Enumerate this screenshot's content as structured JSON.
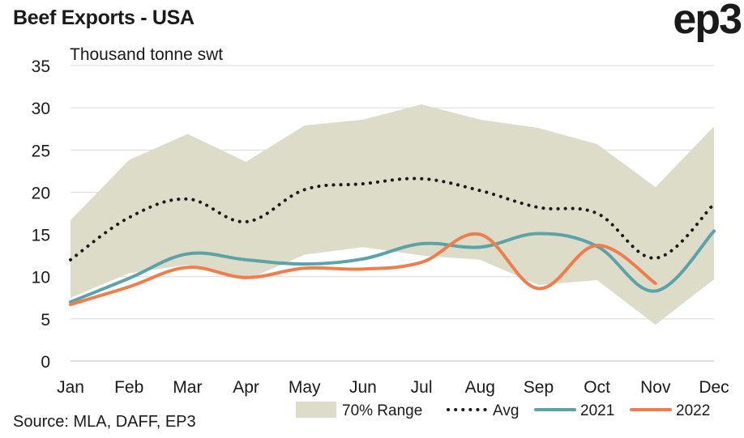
{
  "header": {
    "title": "Beef Exports - USA",
    "logo": "ep3"
  },
  "footer": {
    "source": "Source: MLA, DAFF, EP3"
  },
  "chart_data": {
    "type": "line",
    "ylabel": "Thousand tonne swt",
    "ylim": [
      0,
      35
    ],
    "yticks": [
      0,
      5,
      10,
      15,
      20,
      25,
      30,
      35
    ],
    "categories": [
      "Jan",
      "Feb",
      "Mar",
      "Apr",
      "May",
      "Jun",
      "Jul",
      "Aug",
      "Sep",
      "Oct",
      "Nov",
      "Dec"
    ],
    "grid": "horizontal",
    "legend_position": "bottom-right",
    "range": {
      "name": "70% Range",
      "color": "#dcdcc9",
      "upper": [
        16.7,
        23.8,
        26.9,
        23.6,
        27.9,
        28.6,
        30.4,
        28.6,
        27.6,
        25.7,
        20.6,
        27.8
      ],
      "lower": [
        7.5,
        10.4,
        11.4,
        9.6,
        12.6,
        13.5,
        12.5,
        12.0,
        9.0,
        9.6,
        4.3,
        9.7
      ]
    },
    "series": [
      {
        "name": "Avg",
        "style": "dotted",
        "color": "#1a1a1a",
        "values": [
          12.0,
          17.0,
          19.2,
          16.5,
          20.3,
          21.0,
          21.6,
          20.2,
          18.2,
          17.5,
          12.2,
          18.6
        ]
      },
      {
        "name": "2021",
        "style": "solid",
        "color": "#5ba3a8",
        "values": [
          7.0,
          9.8,
          12.7,
          12.0,
          11.5,
          12.1,
          13.9,
          13.5,
          15.1,
          13.6,
          8.3,
          15.4
        ]
      },
      {
        "name": "2022",
        "style": "solid",
        "color": "#f07d4c",
        "values": [
          6.7,
          8.8,
          11.1,
          9.9,
          11.0,
          10.9,
          11.7,
          15.0,
          8.6,
          13.7,
          9.2,
          null
        ]
      }
    ]
  }
}
